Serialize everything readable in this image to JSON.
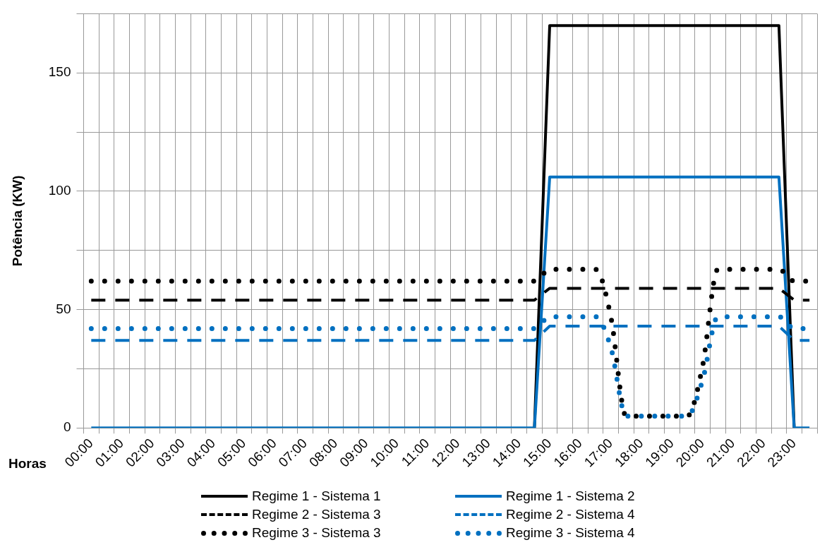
{
  "chart_data": {
    "type": "line",
    "xlabel": "Horas",
    "ylabel": "Potência (KW)",
    "categories": [
      "00:00",
      null,
      "01:00",
      null,
      "02:00",
      null,
      "03:00",
      null,
      "04:00",
      null,
      "05:00",
      null,
      "06:00",
      null,
      "07:00",
      null,
      "08:00",
      null,
      "09:00",
      null,
      "10:00",
      null,
      "11:00",
      null,
      "12:00",
      null,
      "13:00",
      null,
      "14:00",
      null,
      "15:00",
      null,
      "16:00",
      null,
      "17:00",
      null,
      "18:00",
      null,
      "19:00",
      null,
      "20:00",
      null,
      "21:00",
      null,
      "22:00",
      null,
      "23:00",
      null
    ],
    "ylim": [
      0,
      175
    ],
    "yticks": [
      0,
      {
        "value": 25,
        "label": null
      },
      50,
      {
        "value": 75,
        "label": null
      },
      100,
      {
        "value": 125,
        "label": null
      },
      150,
      {
        "value": 175,
        "label": null
      }
    ],
    "grid": true,
    "legend": "bottom",
    "marker": "none",
    "series": [
      {
        "name": "Regime 1 - Sistema 1",
        "color": "#000000",
        "line_style": "solid",
        "values": [
          null,
          null,
          null,
          null,
          null,
          null,
          null,
          null,
          null,
          null,
          null,
          null,
          null,
          null,
          null,
          null,
          null,
          null,
          null,
          null,
          null,
          null,
          null,
          null,
          null,
          null,
          null,
          null,
          null,
          0,
          170,
          170,
          170,
          170,
          170,
          170,
          170,
          170,
          170,
          170,
          170,
          170,
          170,
          170,
          170,
          170,
          0,
          null
        ]
      },
      {
        "name": "Regime 1 - Sistema 2",
        "color": "#0070c0",
        "line_style": "solid",
        "values": [
          0,
          0,
          0,
          0,
          0,
          0,
          0,
          0,
          0,
          0,
          0,
          0,
          0,
          0,
          0,
          0,
          0,
          0,
          0,
          0,
          0,
          0,
          0,
          0,
          0,
          0,
          0,
          0,
          0,
          0,
          106,
          106,
          106,
          106,
          106,
          106,
          106,
          106,
          106,
          106,
          106,
          106,
          106,
          106,
          106,
          106,
          0,
          0
        ]
      },
      {
        "name": "Regime 2 - Sistema 3",
        "color": "#000000",
        "line_style": "dashed",
        "values": [
          54,
          54,
          54,
          54,
          54,
          54,
          54,
          54,
          54,
          54,
          54,
          54,
          54,
          54,
          54,
          54,
          54,
          54,
          54,
          54,
          54,
          54,
          54,
          54,
          54,
          54,
          54,
          54,
          54,
          54,
          59,
          59,
          59,
          59,
          59,
          59,
          59,
          59,
          59,
          59,
          59,
          59,
          59,
          59,
          59,
          59,
          54,
          54
        ]
      },
      {
        "name": "Regime 2 - Sistema 4",
        "color": "#0070c0",
        "line_style": "dashed",
        "values": [
          37,
          37,
          37,
          37,
          37,
          37,
          37,
          37,
          37,
          37,
          37,
          37,
          37,
          37,
          37,
          37,
          37,
          37,
          37,
          37,
          37,
          37,
          37,
          37,
          37,
          37,
          37,
          37,
          37,
          37,
          43,
          43,
          43,
          43,
          43,
          43,
          43,
          43,
          43,
          43,
          43,
          43,
          43,
          43,
          43,
          43,
          37,
          37
        ]
      },
      {
        "name": "Regime 3 - Sistema 3",
        "color": "#000000",
        "line_style": "dotted",
        "values": [
          62,
          62,
          62,
          62,
          62,
          62,
          62,
          62,
          62,
          62,
          62,
          62,
          62,
          62,
          62,
          62,
          62,
          62,
          62,
          62,
          62,
          62,
          62,
          62,
          62,
          62,
          62,
          62,
          62,
          62,
          67,
          67,
          67,
          67,
          47,
          5,
          5,
          5,
          5,
          5,
          26,
          67,
          67,
          67,
          67,
          67,
          62,
          62
        ]
      },
      {
        "name": "Regime 3 - Sistema 4",
        "color": "#0070c0",
        "line_style": "dotted",
        "values": [
          42,
          42,
          42,
          42,
          42,
          42,
          42,
          42,
          42,
          42,
          42,
          42,
          42,
          42,
          42,
          42,
          42,
          42,
          42,
          42,
          42,
          42,
          42,
          42,
          42,
          42,
          42,
          42,
          42,
          42,
          47,
          47,
          47,
          47,
          34,
          5,
          5,
          5,
          5,
          5,
          20,
          47,
          47,
          47,
          47,
          47,
          42,
          42
        ]
      }
    ]
  }
}
